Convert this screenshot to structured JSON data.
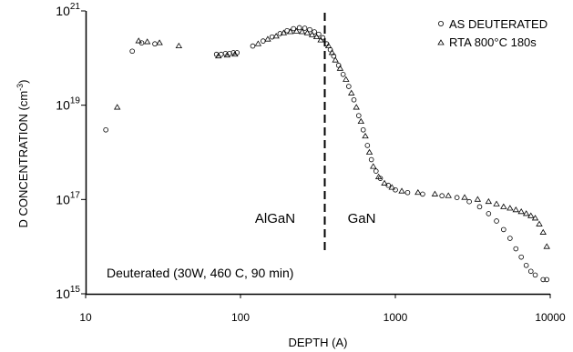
{
  "chart_data": {
    "type": "scatter",
    "xlabel": "DEPTH (A)",
    "ylabel": "D CONCENTRATION (cm",
    "ylabel_sup": "-3",
    "ylabel_close": ")",
    "x_scale": "log",
    "y_scale": "log",
    "xlim": [
      10,
      10000
    ],
    "ylim": [
      1000000000000000.0,
      1e+21
    ],
    "x_ticks": [
      {
        "value": 10,
        "label": "10"
      },
      {
        "value": 100,
        "label": "100"
      },
      {
        "value": 1000,
        "label": "1000"
      },
      {
        "value": 10000,
        "label": "10000"
      }
    ],
    "y_ticks": [
      {
        "value": 1000000000000000.0,
        "base": "10",
        "exp": "15"
      },
      {
        "value": 1e+17,
        "base": "10",
        "exp": "17"
      },
      {
        "value": 1e+19,
        "base": "10",
        "exp": "19"
      },
      {
        "value": 1e+21,
        "base": "10",
        "exp": "21"
      }
    ],
    "grid": false,
    "legend_position": "top-right",
    "series": [
      {
        "name": "AS DEUTERATED",
        "marker": "circle",
        "points": [
          [
            13.5,
            3e+18
          ],
          [
            20,
            1.4e+20
          ],
          [
            23,
            2.1e+20
          ],
          [
            28,
            2e+20
          ],
          [
            70,
            1.2e+20
          ],
          [
            75,
            1.2e+20
          ],
          [
            80,
            1.25e+20
          ],
          [
            85,
            1.25e+20
          ],
          [
            90,
            1.3e+20
          ],
          [
            95,
            1.3e+20
          ],
          [
            120,
            1.8e+20
          ],
          [
            140,
            2.3e+20
          ],
          [
            160,
            2.8e+20
          ],
          [
            180,
            3.3e+20
          ],
          [
            200,
            3.8e+20
          ],
          [
            220,
            4.2e+20
          ],
          [
            240,
            4.4e+20
          ],
          [
            260,
            4.3e+20
          ],
          [
            280,
            4e+20
          ],
          [
            300,
            3.6e+20
          ],
          [
            320,
            3.2e+20
          ],
          [
            340,
            2.7e+20
          ],
          [
            360,
            2e+20
          ],
          [
            380,
            1.5e+20
          ],
          [
            400,
            1.1e+20
          ],
          [
            430,
            7e+19
          ],
          [
            460,
            4.5e+19
          ],
          [
            500,
            2.5e+19
          ],
          [
            540,
            1.3e+19
          ],
          [
            580,
            6e+18
          ],
          [
            620,
            3e+18
          ],
          [
            660,
            1.4e+18
          ],
          [
            700,
            7e+17
          ],
          [
            750,
            4e+17
          ],
          [
            800,
            2.8e+17
          ],
          [
            900,
            2e+17
          ],
          [
            1000,
            1.6e+17
          ],
          [
            1200,
            1.4e+17
          ],
          [
            1500,
            1.3e+17
          ],
          [
            2000,
            1.2e+17
          ],
          [
            2500,
            1.1e+17
          ],
          [
            3000,
            9e+16
          ],
          [
            3500,
            7e+16
          ],
          [
            4000,
            5e+16
          ],
          [
            4500,
            3.5e+16
          ],
          [
            5000,
            2.3e+16
          ],
          [
            5500,
            1.5e+16
          ],
          [
            6000,
            9000000000000000.0
          ],
          [
            6500,
            6000000000000000.0
          ],
          [
            7000,
            4000000000000000.0
          ],
          [
            7500,
            3000000000000000.0
          ],
          [
            8000,
            2500000000000000.0
          ],
          [
            9000,
            2000000000000000.0
          ],
          [
            9500,
            2000000000000000.0
          ]
        ]
      },
      {
        "name": "RTA 800°C 180s",
        "marker": "triangle",
        "points": [
          [
            16,
            9e+18
          ],
          [
            22,
            2.3e+20
          ],
          [
            25,
            2.2e+20
          ],
          [
            30,
            2.1e+20
          ],
          [
            40,
            1.8e+20
          ],
          [
            72,
            1.1e+20
          ],
          [
            82,
            1.15e+20
          ],
          [
            92,
            1.2e+20
          ],
          [
            130,
            2e+20
          ],
          [
            150,
            2.5e+20
          ],
          [
            170,
            2.9e+20
          ],
          [
            190,
            3.4e+20
          ],
          [
            210,
            3.6e+20
          ],
          [
            230,
            3.7e+20
          ],
          [
            250,
            3.6e+20
          ],
          [
            270,
            3.4e+20
          ],
          [
            290,
            3.1e+20
          ],
          [
            310,
            2.8e+20
          ],
          [
            330,
            2.4e+20
          ],
          [
            370,
            1.8e+20
          ],
          [
            390,
            1.3e+20
          ],
          [
            410,
            9e+19
          ],
          [
            440,
            6e+19
          ],
          [
            480,
            3.5e+19
          ],
          [
            520,
            1.8e+19
          ],
          [
            560,
            9e+18
          ],
          [
            600,
            4.5e+18
          ],
          [
            640,
            2.2e+18
          ],
          [
            680,
            1e+18
          ],
          [
            720,
            5e+17
          ],
          [
            780,
            3e+17
          ],
          [
            850,
            2.2e+17
          ],
          [
            950,
            1.8e+17
          ],
          [
            1100,
            1.5e+17
          ],
          [
            1400,
            1.4e+17
          ],
          [
            1800,
            1.3e+17
          ],
          [
            2200,
            1.2e+17
          ],
          [
            2800,
            1.1e+17
          ],
          [
            3400,
            1e+17
          ],
          [
            4000,
            9e+16
          ],
          [
            4500,
            8e+16
          ],
          [
            5000,
            7e+16
          ],
          [
            5500,
            6.5e+16
          ],
          [
            6000,
            6e+16
          ],
          [
            6500,
            5.5e+16
          ],
          [
            7000,
            5e+16
          ],
          [
            7500,
            4.5e+16
          ],
          [
            8000,
            4e+16
          ],
          [
            8500,
            3e+16
          ],
          [
            9000,
            2e+16
          ],
          [
            9500,
            1e+16
          ]
        ]
      }
    ],
    "divider_x": 350,
    "annotations": {
      "left_region": "AlGaN",
      "right_region": "GaN",
      "conditions": "Deuterated (30W, 460 C, 90 min)"
    }
  }
}
